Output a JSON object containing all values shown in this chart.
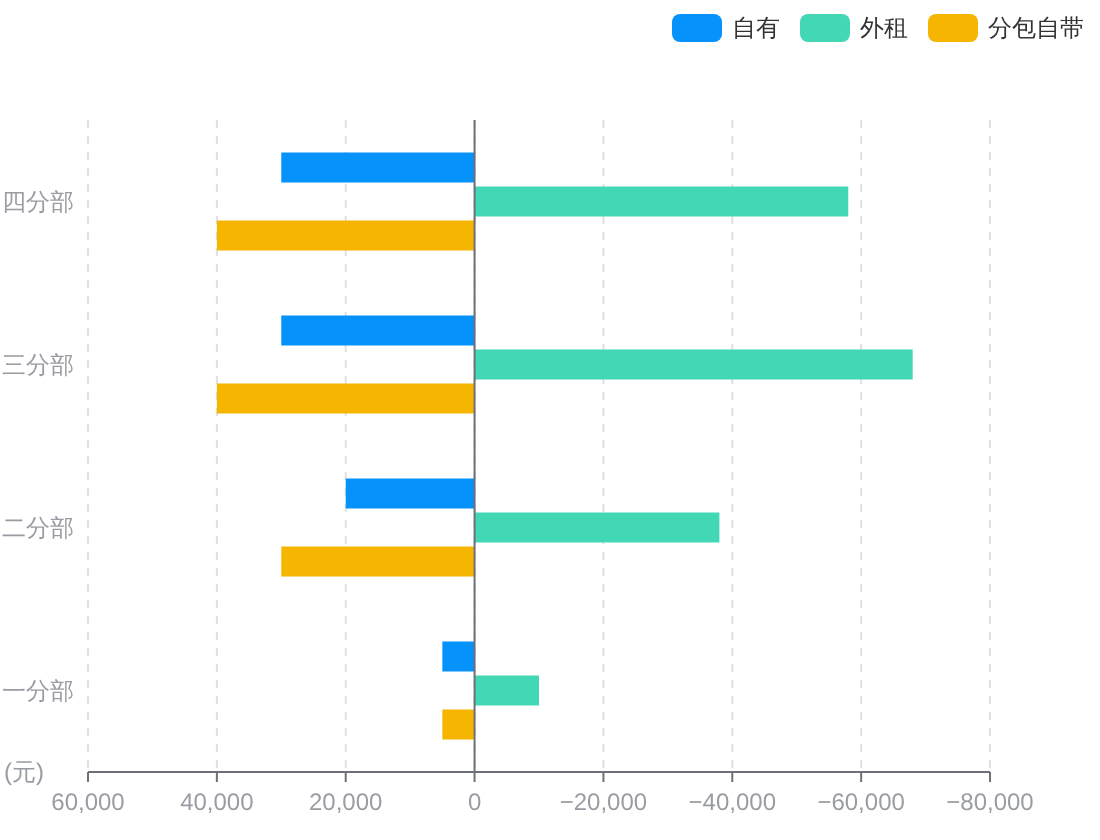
{
  "chart_data": {
    "type": "bar",
    "orientation": "horizontal",
    "xlabel": "(元)",
    "categories": [
      "四分部",
      "三分部",
      "二分部",
      "一分部"
    ],
    "series": [
      {
        "name": "自有",
        "color": "#0592fb",
        "values": [
          30000,
          30000,
          20000,
          5000
        ]
      },
      {
        "name": "外租",
        "color": "#43d8b5",
        "values": [
          -58000,
          -68000,
          -38000,
          -10000
        ]
      },
      {
        "name": "分包自带",
        "color": "#f6b500",
        "values": [
          40000,
          40000,
          30000,
          5000
        ]
      }
    ],
    "xlim": [
      60000,
      -80000
    ],
    "xticks": [
      {
        "value": 60000,
        "label": "60,000"
      },
      {
        "value": 40000,
        "label": "40,000"
      },
      {
        "value": 20000,
        "label": "20,000"
      },
      0,
      {
        "value": -20000,
        "label": "−20,000"
      },
      {
        "value": -40000,
        "label": "−40,000"
      },
      {
        "value": -60000,
        "label": "−60,000"
      },
      {
        "value": -80000,
        "label": "−80,000"
      }
    ],
    "grid": "x",
    "legend": "top right"
  }
}
